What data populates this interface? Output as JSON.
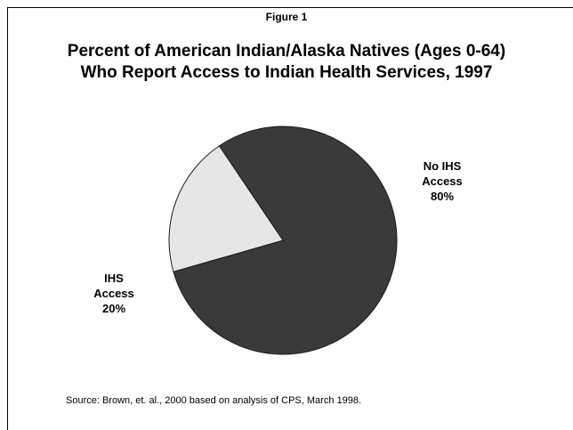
{
  "figure_label": "Figure 1",
  "title_lines": [
    "Percent of American Indian/Alaska Natives (Ages 0-64)",
    "Who Report Access to Indian Health Services, 1997"
  ],
  "source": "Source:  Brown, et. al., 2000 based on analysis of CPS, March 1998.",
  "chart_data": {
    "type": "pie",
    "title": "Percent of American Indian/Alaska Natives (Ages 0-64) Who Report Access to Indian Health Services, 1997",
    "slices": [
      {
        "label_lines": [
          "No IHS",
          "Access"
        ],
        "label": "No IHS Access",
        "value": 80,
        "value_label": "80%",
        "color": "#3a3a3a"
      },
      {
        "label_lines": [
          "IHS",
          "Access"
        ],
        "label": "IHS Access",
        "value": 20,
        "value_label": "20%",
        "color": "#e6e6e6"
      }
    ],
    "legend": "none",
    "start_angle_deg": 326
  }
}
